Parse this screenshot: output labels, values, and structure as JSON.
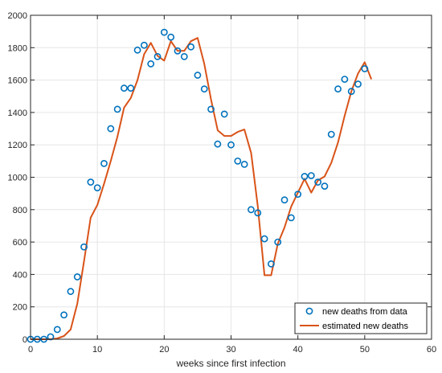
{
  "chart_data": {
    "type": "scatter",
    "xlabel": "weeks since first infection",
    "ylabel": "",
    "xlim": [
      0,
      60
    ],
    "ylim": [
      0,
      2000
    ],
    "x_ticks": [
      "0",
      "10",
      "20",
      "30",
      "40",
      "50",
      "60"
    ],
    "y_ticks": [
      "0",
      "200",
      "400",
      "600",
      "800",
      "1000",
      "1200",
      "1400",
      "1600",
      "1800",
      "2000"
    ],
    "grid": true,
    "legend_position": "bottom-right",
    "colors": {
      "data": "#0072BD",
      "model": "#D95319"
    },
    "series": [
      {
        "name": "new deaths from data",
        "style": "markers",
        "x": [
          0,
          1,
          2,
          3,
          4,
          5,
          6,
          7,
          8,
          9,
          10,
          11,
          12,
          13,
          14,
          15,
          16,
          17,
          18,
          19,
          20,
          21,
          22,
          23,
          24,
          25,
          26,
          27,
          28,
          29,
          30,
          31,
          32,
          33,
          34,
          35,
          36,
          37,
          38,
          39,
          40,
          41,
          42,
          43,
          44,
          45,
          46,
          47,
          48,
          49,
          50
        ],
        "y": [
          0,
          0,
          0,
          15,
          60,
          150,
          295,
          385,
          570,
          970,
          935,
          1085,
          1300,
          1420,
          1550,
          1550,
          1785,
          1815,
          1700,
          1745,
          1895,
          1865,
          1780,
          1745,
          1805,
          1630,
          1545,
          1420,
          1205,
          1390,
          1200,
          1100,
          1080,
          800,
          780,
          620,
          465,
          600,
          860,
          750,
          895,
          1005,
          1010,
          970,
          945,
          1265,
          1545,
          1605,
          1530,
          1575,
          1670
        ]
      },
      {
        "name": "estimated new deaths",
        "style": "line",
        "x": [
          0,
          1,
          2,
          3,
          4,
          5,
          6,
          7,
          8,
          9,
          10,
          11,
          12,
          13,
          14,
          15,
          16,
          17,
          18,
          19,
          20,
          21,
          22,
          23,
          24,
          25,
          26,
          27,
          28,
          29,
          30,
          31,
          32,
          33,
          34,
          35,
          36,
          37,
          38,
          39,
          40,
          41,
          42,
          43,
          44,
          45,
          46,
          47,
          48,
          49,
          50,
          51
        ],
        "y": [
          0,
          0,
          0,
          0,
          5,
          20,
          60,
          220,
          480,
          750,
          830,
          960,
          1100,
          1250,
          1430,
          1490,
          1600,
          1760,
          1830,
          1750,
          1720,
          1840,
          1780,
          1780,
          1840,
          1860,
          1700,
          1480,
          1290,
          1255,
          1255,
          1280,
          1295,
          1150,
          820,
          395,
          395,
          590,
          690,
          820,
          905,
          990,
          905,
          980,
          1005,
          1090,
          1215,
          1380,
          1530,
          1640,
          1710,
          1605
        ]
      }
    ]
  }
}
